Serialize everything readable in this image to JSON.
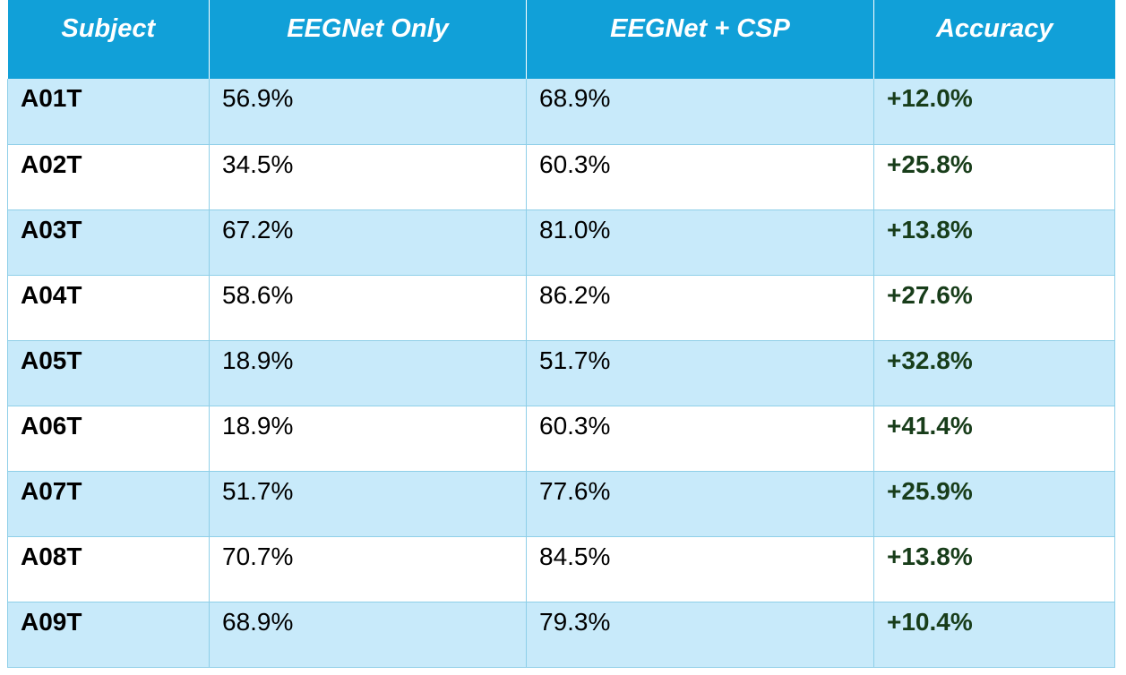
{
  "chart_data": {
    "type": "table",
    "columns": [
      "Subject",
      "EEGNet Only",
      "EEGNet + CSP",
      "Accuracy"
    ],
    "rows": [
      [
        "A01T",
        "56.9%",
        "68.9%",
        "+12.0%"
      ],
      [
        "A02T",
        "34.5%",
        "60.3%",
        "+25.8%"
      ],
      [
        "A03T",
        "67.2%",
        "81.0%",
        "+13.8%"
      ],
      [
        "A04T",
        "58.6%",
        "86.2%",
        "+27.6%"
      ],
      [
        "A05T",
        "18.9%",
        "51.7%",
        "+32.8%"
      ],
      [
        "A06T",
        "18.9%",
        "60.3%",
        "+41.4%"
      ],
      [
        "A07T",
        "51.7%",
        "77.6%",
        "+25.9%"
      ],
      [
        "A08T",
        "70.7%",
        "84.5%",
        "+13.8%"
      ],
      [
        "A09T",
        "68.9%",
        "79.3%",
        "+10.4%"
      ]
    ]
  },
  "colors": {
    "header_bg": "#11a0d8",
    "header_text": "#ffffff",
    "row_alt_bg": "#c8eafa",
    "row_bg": "#ffffff",
    "gain_text": "#183d1a"
  }
}
